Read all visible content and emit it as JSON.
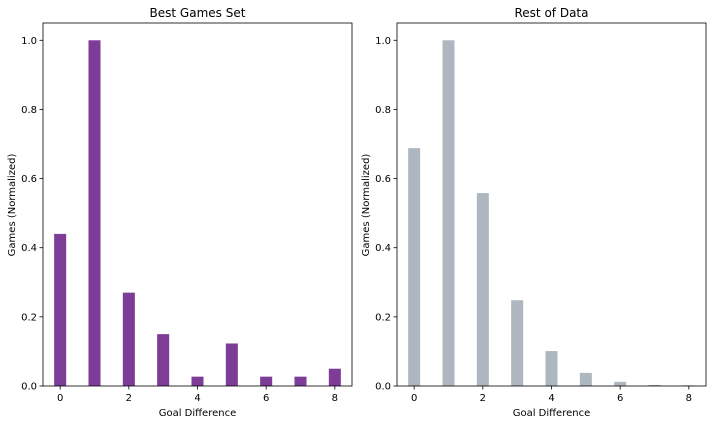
{
  "chart_data": [
    {
      "type": "bar",
      "title": "Best Games Set",
      "xlabel": "Goal Difference",
      "ylabel": "Games (Normalized)",
      "color": "#7d3c98",
      "x": [
        0,
        1,
        2,
        3,
        4,
        5,
        6,
        7,
        8
      ],
      "values": [
        0.44,
        1.0,
        0.27,
        0.15,
        0.027,
        0.123,
        0.027,
        0.027,
        0.05
      ],
      "xticks": [
        0,
        2,
        4,
        6,
        8
      ],
      "xlim": [
        -0.5,
        8.5
      ],
      "yticks": [
        0.0,
        0.2,
        0.4,
        0.6,
        0.8,
        1.0
      ],
      "ylim": [
        0,
        1.05
      ],
      "grid": false
    },
    {
      "type": "bar",
      "title": "Rest of Data",
      "xlabel": "Goal Difference",
      "ylabel": "Games (Normalized)",
      "color": "#aeb6bf",
      "x": [
        0,
        1,
        2,
        3,
        4,
        5,
        6,
        7,
        8
      ],
      "values": [
        0.688,
        1.0,
        0.558,
        0.248,
        0.101,
        0.038,
        0.012,
        0.003,
        0.002
      ],
      "xticks": [
        0,
        2,
        4,
        6,
        8
      ],
      "xlim": [
        -0.5,
        8.5
      ],
      "yticks": [
        0.0,
        0.2,
        0.4,
        0.6,
        0.8,
        1.0
      ],
      "ylim": [
        0,
        1.05
      ],
      "grid": false
    }
  ]
}
